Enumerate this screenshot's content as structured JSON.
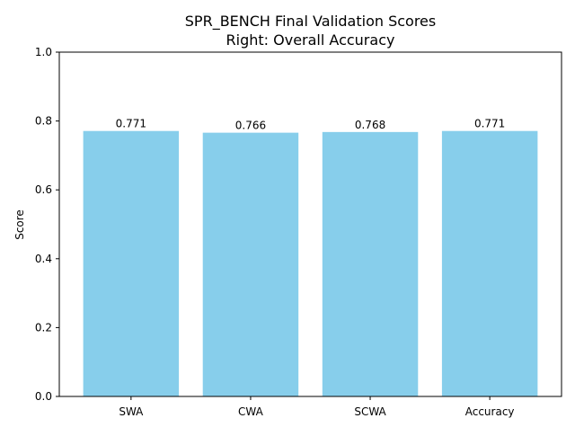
{
  "chart_data": {
    "type": "bar",
    "title_lines": [
      "SPR_BENCH Final Validation Scores",
      "Right: Overall Accuracy"
    ],
    "xlabel": "",
    "ylabel": "Score",
    "categories": [
      "SWA",
      "CWA",
      "SCWA",
      "Accuracy"
    ],
    "values": [
      0.771,
      0.766,
      0.768,
      0.771
    ],
    "data_labels": [
      "0.771",
      "0.766",
      "0.768",
      "0.771"
    ],
    "ylim": [
      0,
      1.0
    ],
    "yticks": [
      0.0,
      0.2,
      0.4,
      0.6,
      0.8,
      1.0
    ],
    "ytick_labels": [
      "0.0",
      "0.2",
      "0.4",
      "0.6",
      "0.8",
      "1.0"
    ],
    "bar_color": "#87ceeb",
    "grid": false,
    "legend": false
  }
}
